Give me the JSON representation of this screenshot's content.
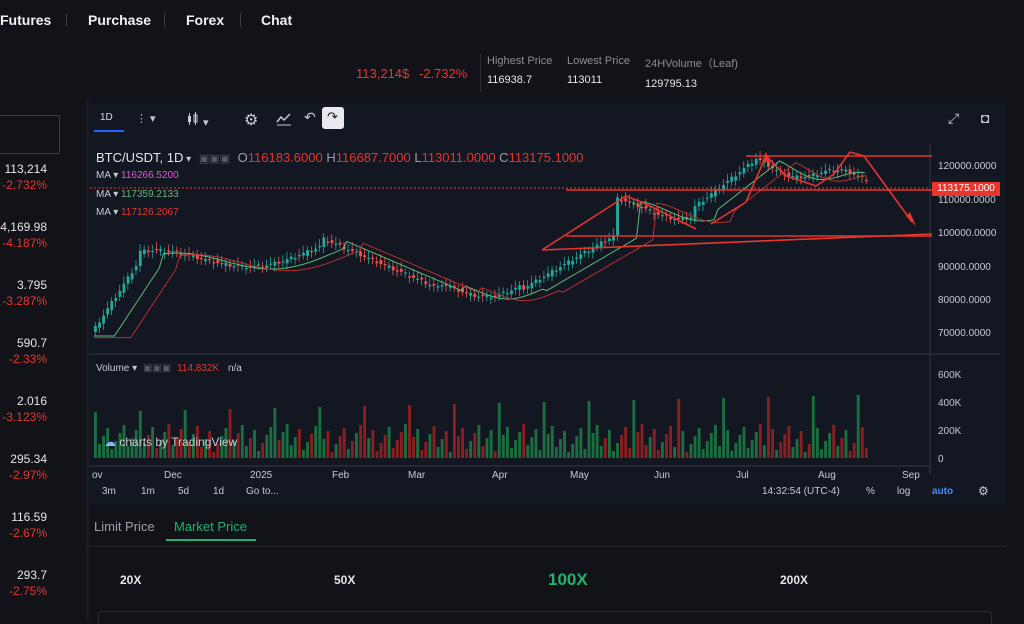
{
  "nav": {
    "items": [
      "Futures",
      "Purchase",
      "Forex",
      "Chat"
    ]
  },
  "ticker": {
    "price": "113,214$",
    "change": "-2.732%",
    "stats": [
      {
        "label": "Highest Price",
        "value": "116938.7"
      },
      {
        "label": "Lowest Price",
        "value": "113011"
      },
      {
        "label": "24HVolume（Leaf)",
        "value": "129795.13"
      }
    ]
  },
  "side_list": [
    {
      "price": "113,214",
      "change": "-2.732%"
    },
    {
      "price": "4,169.98",
      "change": "-4.187%"
    },
    {
      "price": "3.795",
      "change": "-3.287%"
    },
    {
      "price": "590.7",
      "change": "-2.33%"
    },
    {
      "price": "2.016",
      "change": "-3.123%"
    },
    {
      "price": "295.34",
      "change": "-2.97%"
    },
    {
      "price": "116.59",
      "change": "-2.67%"
    },
    {
      "price": "293.7",
      "change": "-2.75%"
    }
  ],
  "chart_toolbar": {
    "interval": "1D"
  },
  "chart": {
    "symbol": "BTC/USDT, 1D",
    "ohlc": {
      "o_label": "O",
      "o": "116183.6000",
      "h_label": "H",
      "h": "116687.7000",
      "l_label": "L",
      "l": "113011.0000",
      "c_label": "C",
      "c": "113175.1000"
    },
    "ma": [
      {
        "label": "MA",
        "value": "116266.5200"
      },
      {
        "label": "MA",
        "value": "117359.2133"
      },
      {
        "label": "MA",
        "value": "117126.2067"
      }
    ],
    "volume_label": "Volume",
    "volume_value": "114.832K",
    "volume_na": "n/a",
    "tradingview": "charts by TradingView",
    "last_price_tag": "113175.1000",
    "price_axis": [
      "120000.0000",
      "110000.0000",
      "100000.0000",
      "90000.0000",
      "80000.0000",
      "70000.0000"
    ],
    "volume_axis": [
      "600K",
      "400K",
      "200K",
      "0"
    ],
    "time_axis": [
      "ov",
      "Dec",
      "2025",
      "Feb",
      "Mar",
      "Apr",
      "May",
      "Jun",
      "Jul",
      "Aug",
      "Sep"
    ],
    "ranges": [
      "3m",
      "1m",
      "5d",
      "1d",
      "Go to..."
    ],
    "clock": "14:32:54 (UTC-4)",
    "scale_opts": [
      "%",
      "log",
      "auto"
    ]
  },
  "colors": {
    "up": "#26a69a",
    "down": "#ef5350",
    "accent_green": "#20b26c",
    "red": "#e8352d"
  },
  "order_tabs": [
    "Limit Price",
    "Market Price"
  ],
  "leverage": [
    "20X",
    "50X",
    "100X",
    "200X"
  ]
}
